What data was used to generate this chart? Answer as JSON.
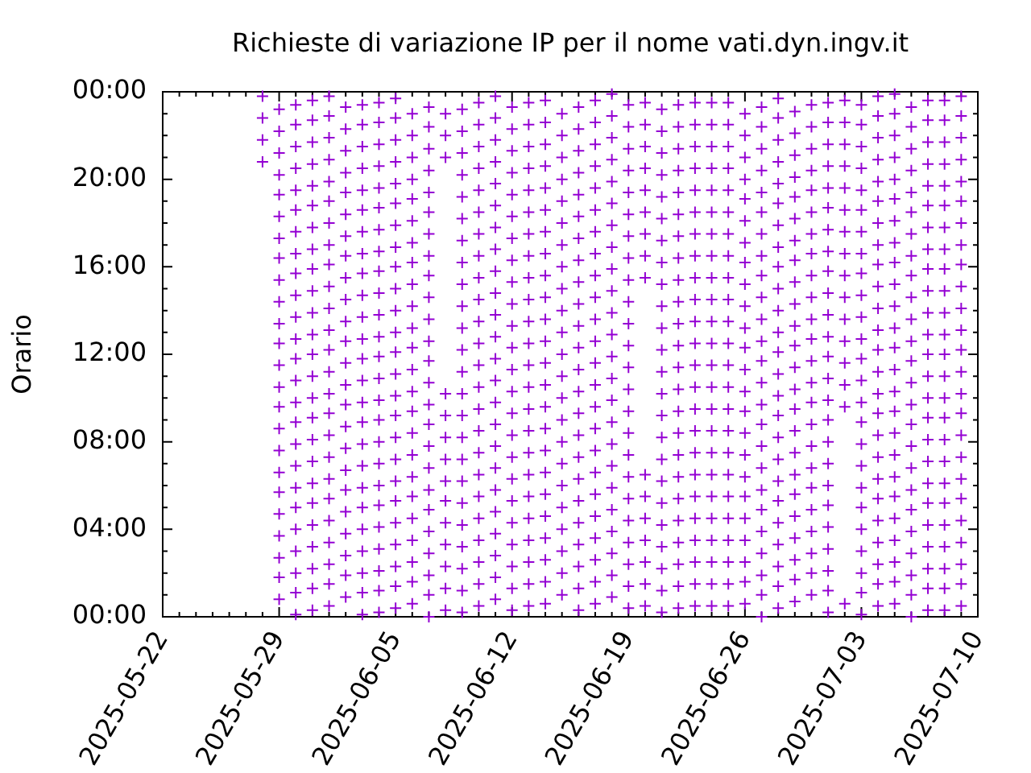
{
  "chart_data": {
    "type": "scatter",
    "title": "Richieste di variazione IP per il nome vati.dyn.ingv.it",
    "ylabel": "Orario",
    "marker": "cross",
    "xlim": [
      "2025-05-22",
      "2025-07-10"
    ],
    "xticks": [
      "2025-05-22",
      {
        "value": "2025-05-23",
        "label": null
      },
      {
        "value": "2025-05-24",
        "label": null
      },
      {
        "value": "2025-05-25",
        "label": null
      },
      {
        "value": "2025-05-26",
        "label": null
      },
      {
        "value": "2025-05-27",
        "label": null
      },
      {
        "value": "2025-05-28",
        "label": null
      },
      "2025-05-29",
      {
        "value": "2025-05-30",
        "label": null
      },
      {
        "value": "2025-05-31",
        "label": null
      },
      {
        "value": "2025-06-01",
        "label": null
      },
      {
        "value": "2025-06-02",
        "label": null
      },
      {
        "value": "2025-06-03",
        "label": null
      },
      {
        "value": "2025-06-04",
        "label": null
      },
      "2025-06-05",
      {
        "value": "2025-06-06",
        "label": null
      },
      {
        "value": "2025-06-07",
        "label": null
      },
      {
        "value": "2025-06-08",
        "label": null
      },
      {
        "value": "2025-06-09",
        "label": null
      },
      {
        "value": "2025-06-10",
        "label": null
      },
      {
        "value": "2025-06-11",
        "label": null
      },
      "2025-06-12",
      {
        "value": "2025-06-13",
        "label": null
      },
      {
        "value": "2025-06-14",
        "label": null
      },
      {
        "value": "2025-06-15",
        "label": null
      },
      {
        "value": "2025-06-16",
        "label": null
      },
      {
        "value": "2025-06-17",
        "label": null
      },
      {
        "value": "2025-06-18",
        "label": null
      },
      "2025-06-19",
      {
        "value": "2025-06-20",
        "label": null
      },
      {
        "value": "2025-06-21",
        "label": null
      },
      {
        "value": "2025-06-22",
        "label": null
      },
      {
        "value": "2025-06-23",
        "label": null
      },
      {
        "value": "2025-06-24",
        "label": null
      },
      {
        "value": "2025-06-25",
        "label": null
      },
      "2025-06-26",
      {
        "value": "2025-06-27",
        "label": null
      },
      {
        "value": "2025-06-28",
        "label": null
      },
      {
        "value": "2025-06-29",
        "label": null
      },
      {
        "value": "2025-06-30",
        "label": null
      },
      {
        "value": "2025-07-01",
        "label": null
      },
      {
        "value": "2025-07-02",
        "label": null
      },
      "2025-07-03",
      {
        "value": "2025-07-04",
        "label": null
      },
      {
        "value": "2025-07-05",
        "label": null
      },
      {
        "value": "2025-07-06",
        "label": null
      },
      {
        "value": "2025-07-07",
        "label": null
      },
      {
        "value": "2025-07-08",
        "label": null
      },
      {
        "value": "2025-07-09",
        "label": null
      },
      "2025-07-10"
    ],
    "ylim": [
      0,
      24
    ],
    "yticks": [
      {
        "value": 0,
        "label": "00:00"
      },
      {
        "value": 1,
        "label": null
      },
      {
        "value": 2,
        "label": null
      },
      {
        "value": 3,
        "label": null
      },
      {
        "value": 4,
        "label": "04:00"
      },
      {
        "value": 5,
        "label": null
      },
      {
        "value": 6,
        "label": null
      },
      {
        "value": 7,
        "label": null
      },
      {
        "value": 8,
        "label": "08:00"
      },
      {
        "value": 9,
        "label": null
      },
      {
        "value": 10,
        "label": null
      },
      {
        "value": 11,
        "label": null
      },
      {
        "value": 12,
        "label": "12:00"
      },
      {
        "value": 13,
        "label": null
      },
      {
        "value": 14,
        "label": null
      },
      {
        "value": 15,
        "label": null
      },
      {
        "value": 16,
        "label": "16:00"
      },
      {
        "value": 17,
        "label": null
      },
      {
        "value": 18,
        "label": null
      },
      {
        "value": 19,
        "label": null
      },
      {
        "value": 20,
        "label": "20:00"
      },
      {
        "value": 21,
        "label": null
      },
      {
        "value": 22,
        "label": null
      },
      {
        "value": 23,
        "label": null
      },
      {
        "value": 24,
        "label": "00:00"
      }
    ],
    "x": [
      "2025-05-28",
      "2025-05-29",
      "2025-05-30",
      "2025-05-31",
      "2025-06-01",
      "2025-06-02",
      "2025-06-03",
      "2025-06-04",
      "2025-06-05",
      "2025-06-06",
      "2025-06-07",
      "2025-06-08",
      "2025-06-09",
      "2025-06-10",
      "2025-06-11",
      "2025-06-12",
      "2025-06-13",
      "2025-06-14",
      "2025-06-15",
      "2025-06-16",
      "2025-06-17",
      "2025-06-18",
      "2025-06-19",
      "2025-06-20",
      "2025-06-21",
      "2025-06-22",
      "2025-06-23",
      "2025-06-24",
      "2025-06-25",
      "2025-06-26",
      "2025-06-27",
      "2025-06-28",
      "2025-06-29",
      "2025-06-30",
      "2025-07-01",
      "2025-07-02",
      "2025-07-03",
      "2025-07-04",
      "2025-07-05",
      "2025-07-06",
      "2025-07-07",
      "2025-07-08",
      "2025-07-09"
    ],
    "series": [
      {
        "color": "#9400d3",
        "values": [
          20.8,
          0.8,
          0.1,
          0.3,
          0.5,
          0.9,
          0.1,
          0.2,
          0.4,
          0.6,
          0,
          0.3,
          0.2,
          0.5,
          0.8,
          0.3,
          0.5,
          0.6,
          1,
          0.3,
          0.6,
          0.9,
          0.4,
          0.5,
          0.2,
          0.4,
          0.5,
          0.5,
          0.5,
          0.6,
          0,
          0.4,
          0.7,
          1,
          0.2,
          0.6,
          0.1,
          0.5,
          0.6,
          0,
          0.3,
          0.3,
          0.5
        ]
      },
      {
        "color": "#9400d3",
        "values": [
          21.8,
          1.8,
          1.1,
          1.3,
          1.5,
          1.9,
          1.1,
          1.2,
          1.4,
          1.6,
          1,
          1.3,
          1.2,
          1.5,
          1.8,
          1.3,
          1.5,
          1.6,
          2,
          1.3,
          1.6,
          1.9,
          1.4,
          1.5,
          1.2,
          1.4,
          1.5,
          1.5,
          1.5,
          1.6,
          1,
          1.4,
          1.7,
          2,
          1.2,
          null,
          1.1,
          1.5,
          1.6,
          1,
          1.3,
          1.3,
          1.5
        ]
      },
      {
        "color": "#9400d3",
        "values": [
          22.8,
          2.7,
          2,
          2.2,
          2.4,
          2.8,
          2,
          2.1,
          2.3,
          2.5,
          1.9,
          2.3,
          2.2,
          2.5,
          2.8,
          2.3,
          2.5,
          2.6,
          3,
          2.3,
          2.6,
          2.9,
          2.4,
          2.5,
          2.2,
          2.4,
          2.5,
          2.5,
          2.5,
          2.5,
          1.9,
          2.3,
          2.6,
          2.9,
          2.1,
          null,
          2,
          2.4,
          2.5,
          1.9,
          2.2,
          2.2,
          2.4
        ]
      },
      {
        "color": "#9400d3",
        "values": [
          23.8,
          3.7,
          3,
          3.2,
          3.4,
          3.8,
          3,
          3.1,
          3.3,
          3.5,
          2.9,
          3.3,
          3.2,
          3.5,
          3.8,
          3.3,
          3.5,
          3.6,
          4,
          3.3,
          3.6,
          3.9,
          3.4,
          3.5,
          3.2,
          3.4,
          3.5,
          3.5,
          3.5,
          3.5,
          2.9,
          3.3,
          3.6,
          3.9,
          3.1,
          null,
          3,
          3.4,
          3.5,
          2.9,
          3.2,
          3.2,
          3.4
        ]
      },
      {
        "color": "#9400d3",
        "values": [
          null,
          4.7,
          4,
          4.2,
          4.4,
          4.8,
          4,
          4.1,
          4.3,
          4.5,
          3.9,
          4.3,
          4.2,
          4.5,
          4.8,
          4.3,
          4.5,
          4.6,
          5,
          4.3,
          4.6,
          4.9,
          4.4,
          4.5,
          4.2,
          4.4,
          4.5,
          4.5,
          4.5,
          4.5,
          3.9,
          4.3,
          4.6,
          4.9,
          4.1,
          null,
          4,
          4.4,
          4.5,
          3.9,
          4.2,
          4.2,
          4.4
        ]
      },
      {
        "color": "#9400d3",
        "values": [
          null,
          5.7,
          5,
          5.2,
          5.4,
          5.8,
          5,
          5.1,
          5.3,
          5.5,
          4.9,
          5.3,
          5.2,
          5.5,
          5.8,
          5.3,
          5.5,
          5.6,
          6,
          5.3,
          5.6,
          5.9,
          5.4,
          5.5,
          5.2,
          5.4,
          5.5,
          5.5,
          5.5,
          5.5,
          4.9,
          5.3,
          5.6,
          5.9,
          5.1,
          null,
          5,
          5.4,
          5.5,
          4.9,
          5.2,
          5.2,
          5.4
        ]
      },
      {
        "color": "#9400d3",
        "values": [
          null,
          6.6,
          5.9,
          6.1,
          6.3,
          6.7,
          5.9,
          6,
          6.2,
          6.4,
          5.8,
          6.2,
          6.2,
          6.5,
          6.8,
          6.3,
          6.5,
          6.6,
          7,
          6.3,
          6.6,
          6.9,
          6.4,
          6.5,
          6.2,
          6.4,
          6.5,
          6.5,
          6.5,
          6.4,
          5.8,
          6.2,
          6.5,
          6.8,
          6,
          null,
          5.9,
          6.3,
          6.4,
          5.8,
          6.1,
          6.1,
          6.3
        ]
      },
      {
        "color": "#9400d3",
        "values": [
          null,
          7.6,
          6.9,
          7.1,
          7.3,
          7.7,
          6.9,
          7,
          7.2,
          7.4,
          6.8,
          7.2,
          7.2,
          7.5,
          7.8,
          7.3,
          7.5,
          7.6,
          8,
          7.3,
          7.6,
          7.9,
          7.4,
          null,
          7.2,
          7.4,
          7.5,
          7.5,
          7.5,
          7.4,
          6.8,
          7.2,
          7.5,
          7.8,
          7,
          null,
          6.9,
          7.3,
          7.4,
          6.8,
          7.1,
          7.1,
          7.3
        ]
      },
      {
        "color": "#9400d3",
        "values": [
          null,
          8.6,
          7.9,
          8.1,
          8.3,
          8.7,
          7.9,
          8,
          8.2,
          8.4,
          7.8,
          8.2,
          8.2,
          8.5,
          8.8,
          8.3,
          8.5,
          8.6,
          9,
          8.3,
          8.6,
          8.9,
          8.4,
          null,
          8.2,
          8.4,
          8.5,
          8.5,
          8.5,
          8.4,
          7.8,
          8.2,
          8.5,
          8.8,
          8,
          null,
          7.9,
          8.3,
          8.4,
          7.8,
          8.1,
          8.1,
          8.3
        ]
      },
      {
        "color": "#9400d3",
        "values": [
          null,
          9.6,
          8.9,
          9.1,
          9.3,
          9.7,
          8.9,
          9,
          9.2,
          9.4,
          8.8,
          9.2,
          9.2,
          9.5,
          9.8,
          9.3,
          9.5,
          9.6,
          10,
          9.3,
          9.6,
          9.9,
          9.4,
          null,
          9.2,
          9.4,
          9.5,
          9.5,
          9.5,
          9.4,
          8.8,
          9.2,
          9.5,
          9.8,
          9,
          9.6,
          8.9,
          9.3,
          9.4,
          8.8,
          9.1,
          9.1,
          9.3
        ]
      },
      {
        "color": "#9400d3",
        "values": [
          null,
          10.5,
          9.8,
          10,
          10.2,
          10.6,
          9.8,
          9.9,
          10.1,
          10.3,
          9.7,
          10.2,
          10.2,
          10.5,
          10.8,
          10.3,
          10.5,
          10.6,
          11,
          10.3,
          10.6,
          10.9,
          10.4,
          null,
          10.2,
          10.4,
          10.5,
          10.5,
          10.5,
          10.3,
          9.7,
          10.1,
          10.4,
          10.7,
          9.9,
          10.6,
          9.8,
          10.2,
          10.3,
          9.7,
          10,
          10,
          10.2
        ]
      },
      {
        "color": "#9400d3",
        "values": [
          null,
          11.5,
          10.8,
          11,
          11.2,
          11.6,
          10.8,
          10.9,
          11.1,
          11.3,
          10.7,
          null,
          11.2,
          11.5,
          11.8,
          11.3,
          11.5,
          11.6,
          12,
          11.3,
          11.6,
          11.9,
          11.4,
          null,
          11.2,
          11.4,
          11.5,
          11.5,
          11.5,
          11.3,
          10.7,
          11.1,
          11.4,
          11.7,
          10.9,
          11.6,
          10.8,
          11.2,
          11.3,
          10.7,
          11,
          11,
          11.2
        ]
      },
      {
        "color": "#9400d3",
        "values": [
          null,
          12.5,
          11.8,
          12,
          12.2,
          12.6,
          11.8,
          11.9,
          12.1,
          12.3,
          11.7,
          null,
          12.2,
          12.5,
          12.8,
          12.3,
          12.5,
          12.6,
          13,
          12.3,
          12.6,
          12.9,
          12.4,
          null,
          12.2,
          12.4,
          12.5,
          12.5,
          12.5,
          12.3,
          11.7,
          12.1,
          12.4,
          12.7,
          11.9,
          12.6,
          11.8,
          12.2,
          12.3,
          11.7,
          12,
          12,
          12.2
        ]
      },
      {
        "color": "#9400d3",
        "values": [
          null,
          13.4,
          12.7,
          12.9,
          13.1,
          13.5,
          12.7,
          12.8,
          13,
          13.2,
          12.6,
          null,
          13.2,
          13.5,
          13.8,
          13.3,
          13.5,
          13.6,
          14,
          13.3,
          13.6,
          13.9,
          13.4,
          null,
          13.2,
          13.4,
          13.5,
          13.5,
          13.5,
          13.2,
          12.6,
          13,
          13.3,
          13.6,
          12.8,
          13.6,
          12.7,
          13.1,
          13.2,
          12.6,
          12.9,
          12.9,
          13.1
        ]
      },
      {
        "color": "#9400d3",
        "values": [
          null,
          14.4,
          13.7,
          13.9,
          14.1,
          14.5,
          13.7,
          13.8,
          14,
          14.2,
          13.6,
          null,
          14.2,
          14.5,
          14.8,
          14.3,
          14.5,
          14.6,
          15,
          14.3,
          14.6,
          14.9,
          14.4,
          null,
          14.2,
          14.4,
          14.5,
          14.5,
          14.5,
          14.2,
          13.6,
          14,
          14.3,
          14.6,
          13.8,
          14.6,
          13.7,
          14.1,
          14.2,
          13.6,
          13.9,
          13.9,
          14.1
        ]
      },
      {
        "color": "#9400d3",
        "values": [
          null,
          15.4,
          14.7,
          14.9,
          15.1,
          15.5,
          14.7,
          14.8,
          15,
          15.2,
          14.6,
          null,
          15.2,
          15.5,
          15.8,
          15.3,
          15.5,
          15.6,
          16,
          15.3,
          15.6,
          15.9,
          15.4,
          15.5,
          15.2,
          15.4,
          15.5,
          15.5,
          15.5,
          15.2,
          14.6,
          15,
          15.3,
          15.6,
          14.8,
          15.6,
          14.7,
          15.1,
          15.2,
          14.6,
          14.9,
          14.9,
          15.1
        ]
      },
      {
        "color": "#9400d3",
        "values": [
          null,
          16.4,
          15.7,
          15.9,
          16.1,
          16.5,
          15.7,
          15.8,
          16,
          16.2,
          15.6,
          null,
          16.2,
          16.5,
          16.8,
          16.3,
          16.5,
          16.6,
          17,
          16.3,
          16.6,
          16.9,
          16.4,
          16.5,
          16.2,
          16.4,
          16.5,
          16.5,
          16.5,
          16.2,
          15.6,
          16,
          16.3,
          16.6,
          15.8,
          16.6,
          15.7,
          16.1,
          16.2,
          15.6,
          15.9,
          15.9,
          16.1
        ]
      },
      {
        "color": "#9400d3",
        "values": [
          null,
          17.3,
          16.6,
          16.8,
          17,
          17.4,
          16.6,
          16.7,
          16.9,
          17.1,
          16.5,
          null,
          17.2,
          17.5,
          17.8,
          17.3,
          17.5,
          17.6,
          18,
          17.3,
          17.6,
          17.9,
          17.4,
          17.5,
          17.2,
          17.4,
          17.5,
          17.5,
          17.5,
          17.1,
          16.5,
          16.9,
          17.2,
          17.5,
          16.7,
          17.6,
          16.6,
          17,
          17.1,
          16.5,
          16.8,
          16.8,
          17
        ]
      },
      {
        "color": "#9400d3",
        "values": [
          null,
          18.3,
          17.6,
          17.8,
          18,
          18.4,
          17.6,
          17.7,
          17.9,
          18.1,
          17.5,
          null,
          18.2,
          18.5,
          18.8,
          18.3,
          18.5,
          18.6,
          19,
          18.3,
          18.6,
          18.9,
          18.4,
          18.5,
          18.2,
          18.4,
          18.5,
          18.5,
          18.5,
          18.1,
          17.5,
          17.9,
          18.2,
          18.5,
          17.7,
          18.6,
          17.6,
          18,
          18.1,
          17.5,
          17.8,
          17.8,
          18
        ]
      },
      {
        "color": "#9400d3",
        "values": [
          null,
          19.3,
          18.6,
          18.8,
          19,
          19.4,
          18.6,
          18.7,
          18.9,
          19.1,
          18.5,
          null,
          19.2,
          19.5,
          19.8,
          19.3,
          19.5,
          19.6,
          20,
          19.3,
          19.6,
          19.9,
          19.4,
          19.5,
          19.2,
          19.4,
          19.5,
          19.5,
          19.5,
          19.1,
          18.5,
          18.9,
          19.2,
          19.5,
          18.7,
          19.6,
          18.6,
          19,
          19.1,
          18.5,
          18.8,
          18.8,
          19
        ]
      },
      {
        "color": "#9400d3",
        "values": [
          null,
          20.2,
          19.5,
          19.7,
          19.9,
          20.3,
          19.5,
          19.6,
          19.8,
          20,
          19.4,
          null,
          20.2,
          20.5,
          20.8,
          20.3,
          20.5,
          20.6,
          21,
          20.3,
          20.6,
          20.9,
          20.4,
          20.5,
          20.2,
          20.4,
          20.5,
          20.5,
          20.5,
          20,
          19.4,
          19.8,
          20.1,
          20.4,
          19.6,
          20.6,
          19.5,
          19.9,
          20,
          19.4,
          19.7,
          19.7,
          19.9
        ]
      },
      {
        "color": "#9400d3",
        "values": [
          null,
          21.2,
          20.5,
          20.7,
          20.9,
          21.3,
          20.5,
          20.6,
          20.8,
          21,
          20.4,
          21,
          21.2,
          21.5,
          21.8,
          21.3,
          21.5,
          21.6,
          22,
          21.3,
          21.6,
          21.9,
          21.4,
          21.5,
          21.2,
          21.4,
          21.5,
          21.5,
          21.5,
          21,
          20.4,
          20.8,
          21.1,
          21.4,
          20.6,
          21.6,
          20.5,
          20.9,
          21,
          20.4,
          20.7,
          20.7,
          20.9
        ]
      },
      {
        "color": "#9400d3",
        "values": [
          null,
          22.2,
          21.5,
          21.7,
          21.9,
          22.3,
          21.5,
          21.6,
          21.8,
          22,
          21.4,
          22,
          22.2,
          22.5,
          22.8,
          22.3,
          22.5,
          22.6,
          23,
          22.3,
          22.6,
          22.9,
          22.4,
          22.5,
          22.2,
          22.4,
          22.5,
          22.5,
          22.5,
          22,
          21.4,
          21.8,
          22.1,
          22.4,
          21.6,
          22.6,
          21.5,
          21.9,
          22,
          21.4,
          21.7,
          21.7,
          21.9
        ]
      },
      {
        "color": "#9400d3",
        "values": [
          null,
          23.2,
          22.5,
          22.7,
          22.9,
          23.3,
          22.5,
          22.6,
          22.8,
          23,
          22.4,
          23,
          23.2,
          23.5,
          23.8,
          23.3,
          23.5,
          23.6,
          null,
          23.3,
          23.6,
          23.9,
          23.4,
          23.5,
          23.2,
          23.4,
          23.5,
          23.5,
          23.5,
          23,
          22.4,
          22.8,
          23.1,
          23.4,
          22.6,
          23.6,
          22.5,
          22.9,
          23,
          22.4,
          22.7,
          22.7,
          22.9
        ]
      },
      {
        "color": "#9400d3",
        "values": [
          null,
          null,
          23.4,
          23.6,
          23.8,
          null,
          23.4,
          23.5,
          23.7,
          null,
          23.3,
          null,
          null,
          null,
          null,
          null,
          null,
          null,
          null,
          null,
          null,
          null,
          null,
          null,
          null,
          null,
          null,
          null,
          null,
          null,
          23.3,
          23.7,
          null,
          null,
          23.5,
          null,
          23.4,
          23.8,
          23.9,
          23.3,
          23.6,
          23.6,
          23.8
        ]
      }
    ]
  }
}
